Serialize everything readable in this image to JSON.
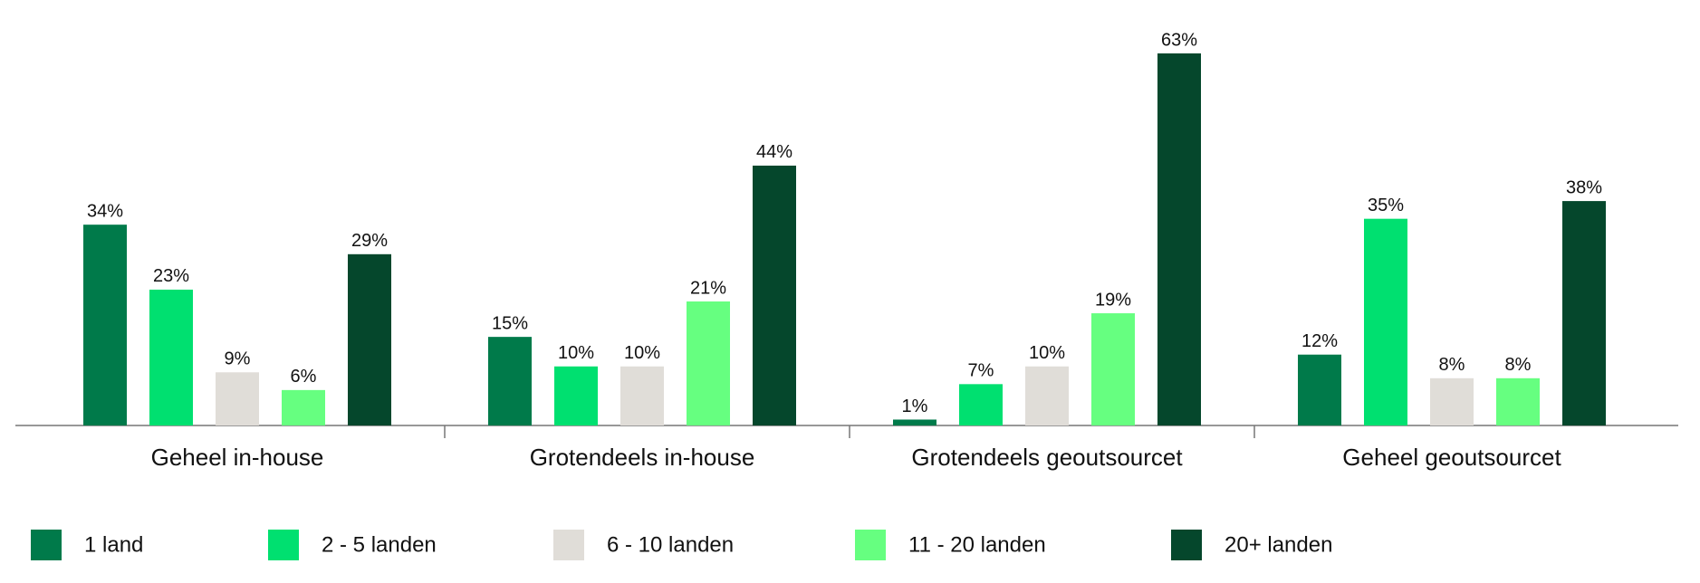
{
  "chart_data": {
    "type": "bar",
    "categories": [
      "Geheel in-house",
      "Grotendeels in-house",
      "Grotendeels geoutsourcet",
      "Geheel geoutsourcet"
    ],
    "series": [
      {
        "name": "1 land",
        "color": "#007a4a",
        "values": [
          34,
          15,
          1,
          12
        ],
        "value_labels": [
          "34%",
          "15%",
          "1%",
          "12%"
        ]
      },
      {
        "name": "2 - 5 landen",
        "color": "#00e070",
        "values": [
          23,
          10,
          7,
          35
        ],
        "value_labels": [
          "23%",
          "10%",
          "7%",
          "35%"
        ]
      },
      {
        "name": "6 - 10 landen",
        "color": "#e0ddd8",
        "values": [
          9,
          10,
          10,
          8
        ],
        "value_labels": [
          "9%",
          "10%",
          "10%",
          "8%"
        ]
      },
      {
        "name": "11 - 20 landen",
        "color": "#66ff80",
        "values": [
          6,
          21,
          19,
          8
        ],
        "value_labels": [
          "6%",
          "21%",
          "19%",
          "8%"
        ]
      },
      {
        "name": "20+ landen",
        "color": "#05472c",
        "values": [
          29,
          44,
          63,
          38
        ],
        "value_labels": [
          "29%",
          "44%",
          "63%",
          "38%"
        ]
      }
    ]
  }
}
